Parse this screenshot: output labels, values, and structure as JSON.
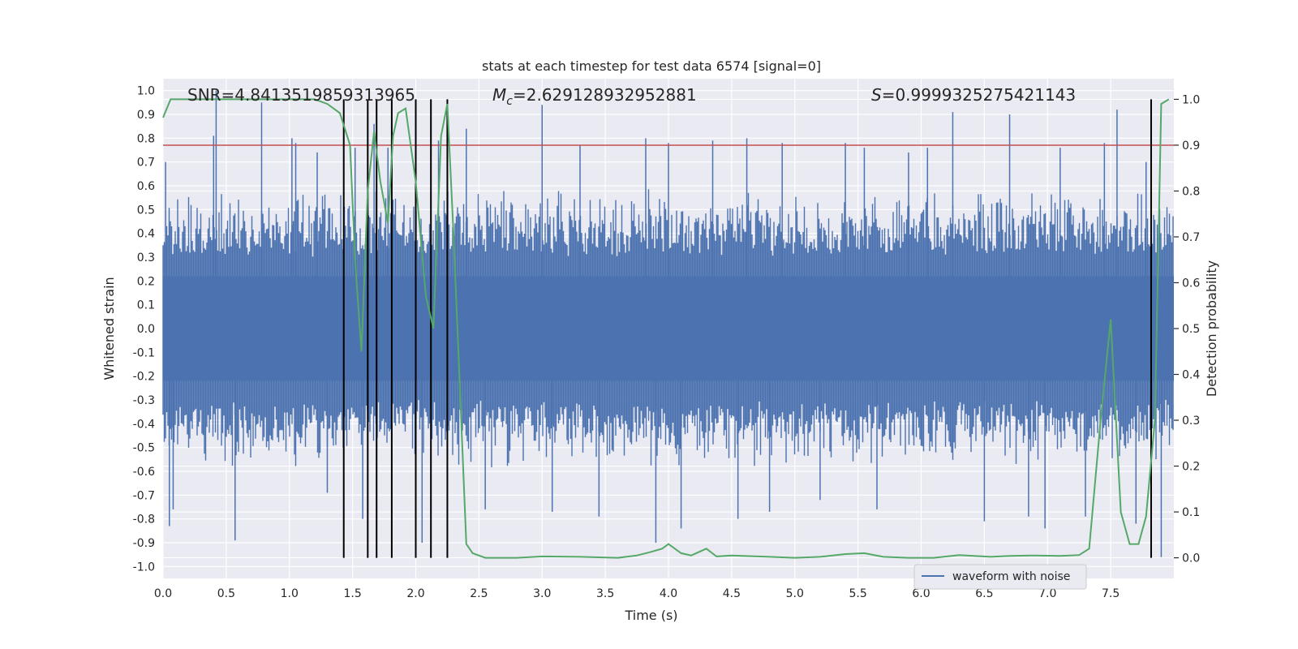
{
  "chart_data": {
    "type": "line",
    "title": "stats at each timestep for test data 6574 [signal=0]",
    "xlabel": "Time (s)",
    "ylabel_left": "Whitened strain",
    "ylabel_right": "Detection probability",
    "xlim": [
      0.0,
      8.0
    ],
    "ylim_left": [
      -1.05,
      1.05
    ],
    "ylim_right": [
      -0.045,
      1.045
    ],
    "grid": true,
    "x_ticks": [
      "0.0",
      "0.5",
      "1.0",
      "1.5",
      "2.0",
      "2.5",
      "3.0",
      "3.5",
      "4.0",
      "4.5",
      "5.0",
      "5.5",
      "6.0",
      "6.5",
      "7.0",
      "7.5"
    ],
    "y_ticks_left": [
      "-1.0",
      "-0.9",
      "-0.8",
      "-0.7",
      "-0.6",
      "-0.5",
      "-0.4",
      "-0.3",
      "-0.2",
      "-0.1",
      "0.0",
      "0.1",
      "0.2",
      "0.3",
      "0.4",
      "0.5",
      "0.6",
      "0.7",
      "0.8",
      "0.9",
      "1.0"
    ],
    "y_ticks_right": [
      "0.0",
      "0.1",
      "0.2",
      "0.3",
      "0.4",
      "0.5",
      "0.6",
      "0.7",
      "0.8",
      "0.9",
      "1.0"
    ],
    "annotations": {
      "snr": "SNR=4.8413519859313965",
      "mc_symbol": "M",
      "mc_sub": "c",
      "mc_value": "=2.629128932952881",
      "s_symbol": "S",
      "s_value": "=0.9999325275421143"
    },
    "threshold": {
      "value_right": 0.9,
      "color": "#c44e52"
    },
    "vlines_x": [
      1.43,
      1.62,
      1.69,
      1.81,
      2.0,
      2.12,
      2.25,
      7.82
    ],
    "vlines_range_right": [
      0.0,
      1.0
    ],
    "waveform": {
      "name": "waveform with noise",
      "color": "#4c72b0",
      "envelope_hi": 0.42,
      "envelope_lo": -0.42,
      "spikes_t": [
        0.02,
        0.05,
        0.08,
        0.4,
        0.42,
        0.57,
        0.78,
        1.02,
        1.05,
        1.22,
        1.3,
        1.52,
        1.58,
        1.67,
        1.78,
        2.05,
        2.18,
        2.4,
        2.55,
        3.0,
        3.08,
        3.3,
        3.45,
        3.82,
        3.9,
        4.0,
        4.1,
        4.35,
        4.55,
        4.62,
        4.8,
        4.9,
        5.2,
        5.4,
        5.55,
        5.65,
        5.9,
        6.05,
        6.25,
        6.5,
        6.7,
        6.85,
        6.98,
        7.1,
        7.3,
        7.45,
        7.55,
        7.7,
        7.78,
        7.9
      ],
      "spikes_y": [
        0.7,
        -0.83,
        -0.76,
        0.81,
        1.0,
        -0.89,
        0.95,
        0.8,
        0.78,
        0.74,
        -0.69,
        0.76,
        -0.8,
        0.86,
        0.76,
        -0.9,
        0.79,
        0.84,
        -0.76,
        0.94,
        -0.77,
        0.77,
        -0.79,
        0.8,
        -0.9,
        0.78,
        -0.84,
        0.79,
        -0.8,
        0.8,
        -0.77,
        0.78,
        -0.72,
        0.78,
        0.76,
        -0.76,
        0.74,
        0.76,
        0.91,
        -0.81,
        0.9,
        -0.79,
        -0.84,
        0.76,
        -0.79,
        0.78,
        0.92,
        -0.82,
        0.7,
        -0.96
      ],
      "spike_color": "#4c72b0"
    },
    "probability": {
      "color": "#55a868",
      "x": [
        0.0,
        0.06,
        0.3,
        0.6,
        0.9,
        1.2,
        1.3,
        1.4,
        1.48,
        1.52,
        1.57,
        1.62,
        1.67,
        1.72,
        1.78,
        1.82,
        1.86,
        1.92,
        2.0,
        2.08,
        2.14,
        2.2,
        2.25,
        2.3,
        2.4,
        2.45,
        2.55,
        2.8,
        3.0,
        3.3,
        3.6,
        3.75,
        3.85,
        3.95,
        4.0,
        4.1,
        4.18,
        4.3,
        4.38,
        4.5,
        4.8,
        5.0,
        5.2,
        5.4,
        5.55,
        5.7,
        5.9,
        6.1,
        6.3,
        6.55,
        6.7,
        6.9,
        7.1,
        7.25,
        7.33,
        7.42,
        7.5,
        7.58,
        7.65,
        7.72,
        7.78,
        7.85,
        7.9,
        7.96
      ],
      "y": [
        0.96,
        1.0,
        1.0,
        1.0,
        1.0,
        1.0,
        0.99,
        0.97,
        0.9,
        0.65,
        0.45,
        0.8,
        0.93,
        0.82,
        0.73,
        0.92,
        0.97,
        0.98,
        0.82,
        0.57,
        0.5,
        0.92,
        0.99,
        0.7,
        0.03,
        0.01,
        0.0,
        0.0,
        0.003,
        0.002,
        0.0,
        0.005,
        0.012,
        0.02,
        0.03,
        0.01,
        0.005,
        0.02,
        0.003,
        0.005,
        0.002,
        0.0,
        0.002,
        0.008,
        0.01,
        0.002,
        0.0,
        0.0,
        0.006,
        0.002,
        0.004,
        0.005,
        0.004,
        0.006,
        0.02,
        0.3,
        0.52,
        0.1,
        0.03,
        0.03,
        0.09,
        0.3,
        0.99,
        1.0
      ]
    }
  }
}
